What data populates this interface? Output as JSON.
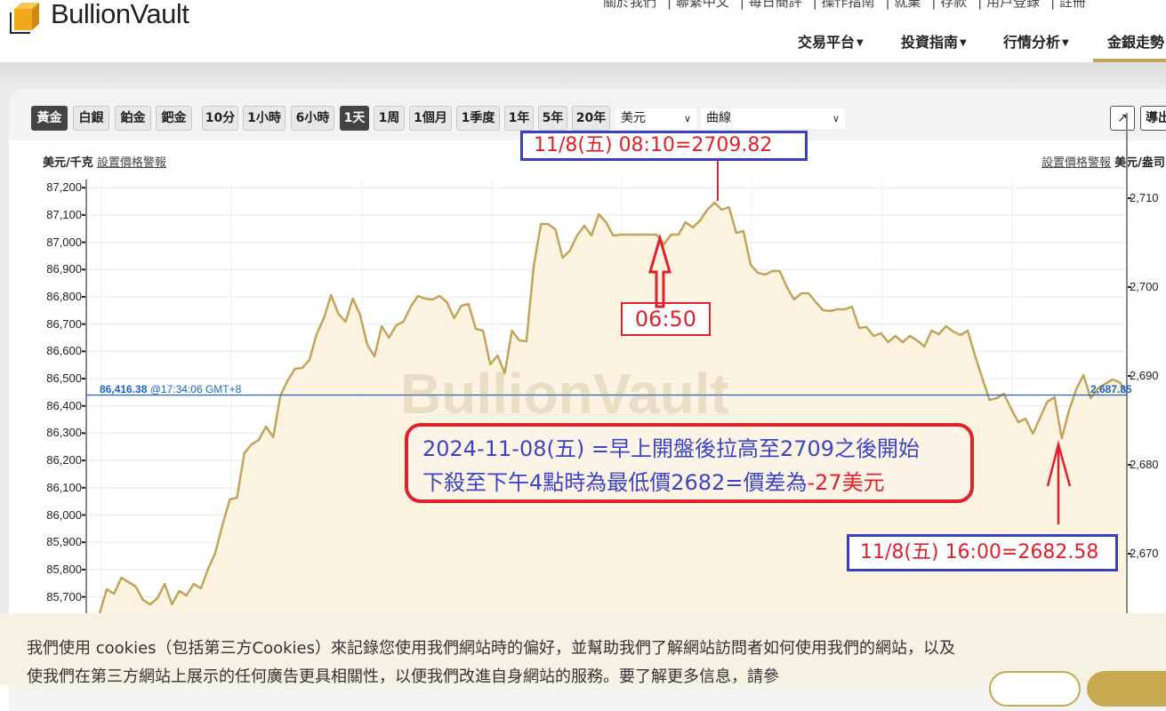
{
  "header": {
    "logo_text": "BullionVault",
    "top_links": [
      "關於我們",
      "聯繫中文",
      "每日簡評",
      "操作指南",
      "就業",
      "存款",
      "用戶登錄",
      "註冊"
    ],
    "main_nav": [
      {
        "label": "交易平台",
        "dropdown": true
      },
      {
        "label": "投資指南",
        "dropdown": true
      },
      {
        "label": "行情分析",
        "dropdown": true
      },
      {
        "label": "金銀走勢",
        "active": true
      }
    ]
  },
  "toolbar": {
    "metals": [
      {
        "label": "黃金",
        "active": true
      },
      {
        "label": "白銀"
      },
      {
        "label": "鉑金"
      },
      {
        "label": "鈀金"
      }
    ],
    "ranges": [
      {
        "label": "10分"
      },
      {
        "label": "1小時"
      },
      {
        "label": "6小時"
      },
      {
        "label": "1天",
        "active": true
      },
      {
        "label": "1周"
      },
      {
        "label": "1個月"
      },
      {
        "label": "1季度"
      },
      {
        "label": "1年"
      },
      {
        "label": "5年"
      },
      {
        "label": "20年"
      }
    ],
    "currency_select": "美元",
    "chart_type_select": "曲線",
    "export_icon": "external-link-icon",
    "export_label": "導出"
  },
  "chart_header": {
    "left_unit": "美元/千克",
    "left_alert": "設置價格警報",
    "right_alert": "設置價格警報",
    "right_unit": "美元/盎司"
  },
  "chart_data": {
    "type": "area",
    "title": "",
    "xlabel": "",
    "ylabel_left": "美元/千克",
    "ylabel_right": "美元/盎司",
    "ylim_right": [
      2663.3,
      2712.1
    ],
    "ylim_left": [
      85640,
      87230
    ],
    "left_ticks": [
      "87,200",
      "87,100",
      "87,000",
      "86,900",
      "86,800",
      "86,700",
      "86,600",
      "86,500",
      "86,400",
      "86,300",
      "86,200",
      "86,100",
      "86,000",
      "85,900",
      "85,800",
      "85,700"
    ],
    "left_tick_values": [
      87200,
      87100,
      87000,
      86900,
      86800,
      86700,
      86600,
      86500,
      86400,
      86300,
      86200,
      86100,
      86000,
      85900,
      85800,
      85700
    ],
    "right_ticks": [
      "2,710",
      "2,700",
      "2,690",
      "2,680",
      "2,670"
    ],
    "right_tick_values": [
      2710,
      2700,
      2690,
      2680,
      2670
    ],
    "grid": true,
    "line_color": "#c2a55a",
    "fill_color": "#fbf1dc",
    "current_price": {
      "kg": "86,416.38",
      "time": "@17:34:06 GMT+8",
      "oz": "2,687.85",
      "oz_value": 2687.85,
      "color": "#1a63c8"
    },
    "series": [
      {
        "values_usd_per_oz": [
          2663.3,
          2666.0,
          2665.5,
          2667.3,
          2666.8,
          2666.3,
          2664.8,
          2664.3,
          2665.0,
          2666.6,
          2664.3,
          2665.8,
          2665.3,
          2666.6,
          2666.1,
          2668.3,
          2670.1,
          2673.3,
          2676.1,
          2676.3,
          2681.3,
          2682.3,
          2682.8,
          2684.3,
          2683.1,
          2687.8,
          2689.5,
          2690.8,
          2690.9,
          2691.8,
          2694.7,
          2696.5,
          2699.1,
          2697.0,
          2696.1,
          2698.7,
          2696.9,
          2693.5,
          2692.2,
          2695.6,
          2694.3,
          2695.7,
          2696.1,
          2697.8,
          2699.0,
          2698.7,
          2698.6,
          2699.0,
          2698.3,
          2696.5,
          2697.9,
          2698.1,
          2695.3,
          2695.1,
          2691.3,
          2692.3,
          2690.3,
          2695.1,
          2694.0,
          2693.9,
          2702.3,
          2707.1,
          2707.1,
          2706.5,
          2703.3,
          2704.1,
          2705.8,
          2706.9,
          2705.8,
          2708.2,
          2707.3,
          2705.8,
          2705.9,
          2705.9,
          2705.9,
          2705.9,
          2705.9,
          2705.9,
          2704.8,
          2705.9,
          2705.9,
          2707.3,
          2706.7,
          2707.5,
          2708.7,
          2709.5,
          2708.7,
          2709.0,
          2706.1,
          2706.3,
          2702.5,
          2701.6,
          2701.4,
          2701.8,
          2701.8,
          2700.0,
          2698.6,
          2699.3,
          2699.3,
          2698.3,
          2697.4,
          2697.3,
          2697.5,
          2697.5,
          2697.8,
          2695.4,
          2695.5,
          2694.5,
          2694.8,
          2693.8,
          2694.5,
          2693.8,
          2694.5,
          2694.0,
          2693.3,
          2695.1,
          2694.7,
          2695.6,
          2695.0,
          2694.6,
          2695.1,
          2692.3,
          2689.8,
          2687.3,
          2687.5,
          2688.0,
          2686.3,
          2684.8,
          2685.2,
          2683.5,
          2685.3,
          2687.1,
          2687.6,
          2683.0,
          2686.1,
          2688.5,
          2690.1,
          2687.5,
          2688.6,
          2689.1,
          2689.6,
          2689.3,
          2688.0
        ]
      }
    ]
  },
  "watermark": "BullionVault",
  "annotations": {
    "peak": "11/8(五)  08:10=2709.82",
    "time_0650": "06:50",
    "summary_line1": "2024-11-08(五) =早上開盤後拉高至2709之後開始",
    "summary_line2a": "下殺至下午4點時為最低價2682=價差為",
    "summary_line2b": "-27美元",
    "low": "11/8(五)  16:00=2682.58"
  },
  "cookie": {
    "text": "我們使用 cookies（包括第三方Cookies）來記錄您使用我們網站時的偏好，並幫助我們了解網站訪問者如何使用我們的網站，以及使我們在第三方網站上展示的任何廣告更具相關性，以便我們改進自身網站的服務。要了解更多信息，請參"
  }
}
